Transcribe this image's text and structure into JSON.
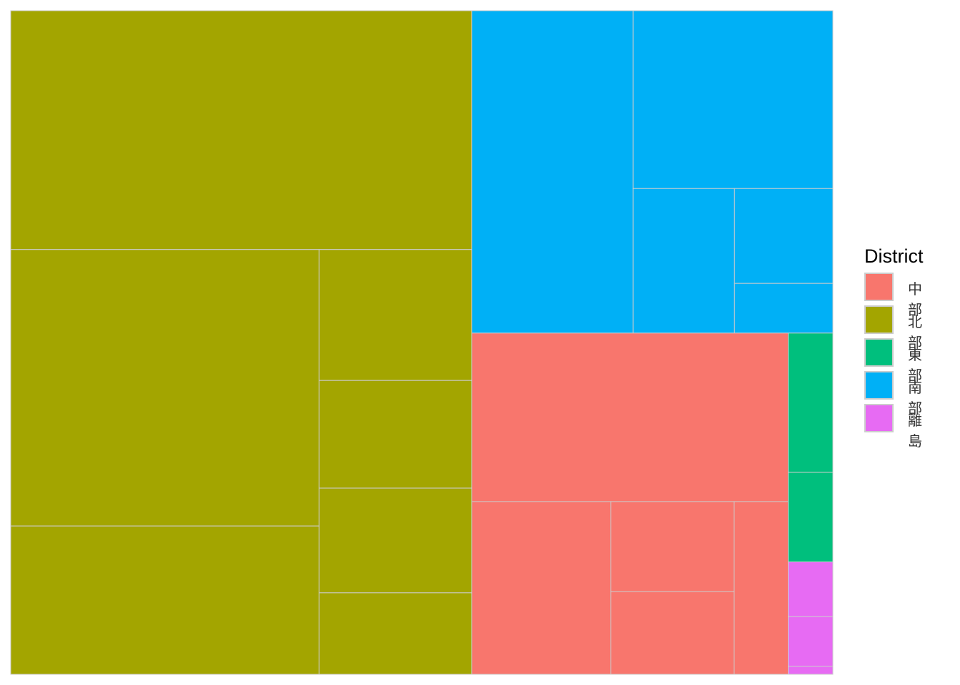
{
  "chart_data": {
    "type": "treemap",
    "legend": {
      "title": "District",
      "position": "right",
      "entries": [
        {
          "label": "中部",
          "color": "#F8766D"
        },
        {
          "label": "北部",
          "color": "#A3A500"
        },
        {
          "label": "東部",
          "color": "#00BF7D"
        },
        {
          "label": "南部",
          "color": "#00B0F6"
        },
        {
          "label": "離島",
          "color": "#E76BF3"
        }
      ]
    },
    "border_color": "#cccccc",
    "groups": [
      {
        "district": "北部",
        "color": "#A3A500",
        "values": [
          24.8,
          19.2,
          10.3,
          4.5,
          3.7,
          3.6,
          2.8
        ]
      },
      {
        "district": "南部",
        "color": "#00B0F6",
        "values": [
          11.7,
          8.0,
          3.3,
          2.1,
          1.1
        ]
      },
      {
        "district": "中部",
        "color": "#F8766D",
        "values": [
          12.0,
          5.4,
          2.5,
          2.3,
          2.1
        ]
      },
      {
        "district": "東部",
        "color": "#00BF7D",
        "values": [
          1.4,
          0.9
        ]
      },
      {
        "district": "離島",
        "color": "#E76BF3",
        "values": [
          0.55,
          0.5,
          0.08
        ]
      }
    ]
  }
}
